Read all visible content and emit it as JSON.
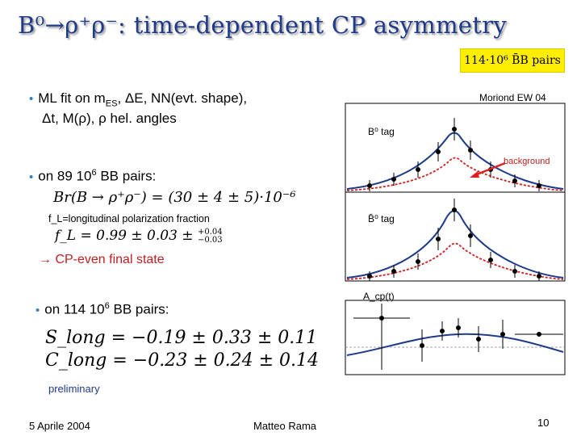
{
  "slide": {
    "title": "B⁰→ρ⁺ρ⁻: time-dependent CP asymmetry",
    "badge": "114·10⁶ B̄B pairs",
    "bullets": [
      {
        "pre": "ML fit on m",
        "sub": "ES",
        "post": ", ΔE, NN(evt. shape),"
      },
      {
        "text": "Δt, M(ρ), ρ hel. angles"
      }
    ],
    "bullet2": {
      "pre": "on 89 10",
      "sup": "6",
      "post": " BB pairs:"
    },
    "br_formula": "Br(B → ρ⁺ρ⁻) = (30 ± 4 ± 5)·10⁻⁶",
    "fl_note": "f_L=longitudinal polarization fraction",
    "fl_formula": {
      "lhs": "f_L = 0.99 ± 0.03 ±",
      "up": "+0.04",
      "down": "−0.03"
    },
    "cp_even": "→ CP-even final state",
    "bullet3": {
      "pre": "on 114 10",
      "sup": "6",
      "post": " BB pairs:"
    },
    "s_long": "S_long = −0.19 ± 0.33 ± 0.11",
    "c_long": "C_long = −0.23 ± 0.24 ± 0.14",
    "preliminary": "preliminary",
    "footer": {
      "date": "5 Aprile 2004",
      "author": "Matteo Rama",
      "page": "10"
    }
  },
  "plot": {
    "conference": "Moriond EW 04",
    "top_label": "B⁰ tag",
    "background_label": "background",
    "mid_label": "B̄⁰ tag",
    "acp_label": "A_cp(t)"
  },
  "colors": {
    "title": "#1f3a8a",
    "badge": "#ffee00",
    "bullet": "#2f7fbf",
    "arrow": "#e02020",
    "fit": "#1f3a8a",
    "bkg": "#d02020"
  }
}
